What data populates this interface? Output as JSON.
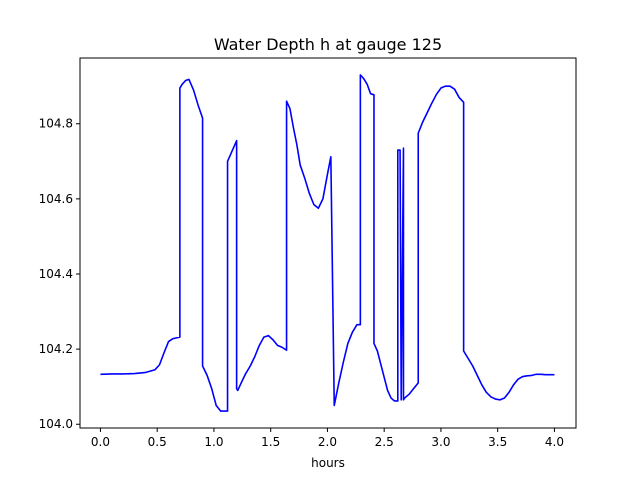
{
  "chart_data": {
    "type": "line",
    "title": "Water Depth h at gauge 125",
    "xlabel": "hours",
    "ylabel": "",
    "xlim": [
      -0.18,
      4.19
    ],
    "ylim": [
      103.99,
      104.975
    ],
    "xticks": [
      0.0,
      0.5,
      1.0,
      1.5,
      2.0,
      2.5,
      3.0,
      3.5,
      4.0
    ],
    "xtick_labels": [
      "0.0",
      "0.5",
      "1.0",
      "1.5",
      "2.0",
      "2.5",
      "3.0",
      "3.5",
      "4.0"
    ],
    "yticks": [
      104.0,
      104.2,
      104.4,
      104.6,
      104.8
    ],
    "ytick_labels": [
      "104.0",
      "104.2",
      "104.4",
      "104.6",
      "104.8"
    ],
    "grid": false,
    "series": [
      {
        "color": "#0000ff",
        "x": [
          0.0,
          0.1,
          0.2,
          0.3,
          0.4,
          0.48,
          0.52,
          0.56,
          0.6,
          0.64,
          0.7,
          0.7,
          0.72,
          0.75,
          0.78,
          0.82,
          0.86,
          0.9,
          0.9,
          0.94,
          0.98,
          1.02,
          1.06,
          1.1,
          1.12,
          1.12,
          1.2,
          1.2,
          1.21,
          1.24,
          1.28,
          1.32,
          1.36,
          1.4,
          1.44,
          1.48,
          1.52,
          1.56,
          1.6,
          1.64,
          1.64,
          1.67,
          1.7,
          1.73,
          1.76,
          1.8,
          1.84,
          1.88,
          1.92,
          1.96,
          2.0,
          2.03,
          2.06,
          2.06,
          2.1,
          2.14,
          2.18,
          2.22,
          2.26,
          2.29,
          2.29,
          2.32,
          2.35,
          2.38,
          2.41,
          2.41,
          2.44,
          2.47,
          2.5,
          2.53,
          2.56,
          2.59,
          2.62,
          2.62,
          2.64,
          2.65,
          2.65,
          2.67,
          2.67,
          2.67,
          2.68,
          2.72,
          2.76,
          2.8,
          2.8,
          2.84,
          2.88,
          2.92,
          2.96,
          3.0,
          3.04,
          3.08,
          3.12,
          3.16,
          3.2,
          3.2,
          3.24,
          3.28,
          3.32,
          3.36,
          3.4,
          3.44,
          3.48,
          3.52,
          3.56,
          3.6,
          3.64,
          3.68,
          3.72,
          3.76,
          3.8,
          3.84,
          3.88,
          3.92,
          3.96,
          4.0
        ],
        "y": [
          104.133,
          104.134,
          104.134,
          104.135,
          104.138,
          104.145,
          104.158,
          104.19,
          104.22,
          104.228,
          104.232,
          104.895,
          104.905,
          104.915,
          104.918,
          104.89,
          104.85,
          104.815,
          104.155,
          104.13,
          104.095,
          104.05,
          104.035,
          104.035,
          104.035,
          104.7,
          104.755,
          104.095,
          104.09,
          104.11,
          104.135,
          104.155,
          104.18,
          104.21,
          104.232,
          104.236,
          104.225,
          104.21,
          104.205,
          104.197,
          104.86,
          104.84,
          104.79,
          104.745,
          104.69,
          104.655,
          104.615,
          104.585,
          104.575,
          104.6,
          104.665,
          104.712,
          104.05,
          104.05,
          104.11,
          104.165,
          104.215,
          104.245,
          104.265,
          104.265,
          104.93,
          104.92,
          104.905,
          104.88,
          104.877,
          104.215,
          104.195,
          104.16,
          104.125,
          104.09,
          104.07,
          104.062,
          104.062,
          104.73,
          104.73,
          104.065,
          104.065,
          104.735,
          104.735,
          104.065,
          104.07,
          104.08,
          104.095,
          104.11,
          104.775,
          104.805,
          104.83,
          104.855,
          104.878,
          104.895,
          104.9,
          104.9,
          104.892,
          104.87,
          104.857,
          104.195,
          104.175,
          104.155,
          104.13,
          104.105,
          104.085,
          104.073,
          104.067,
          104.065,
          104.07,
          104.085,
          104.105,
          104.12,
          104.127,
          104.129,
          104.13,
          104.133,
          104.133,
          104.132,
          104.132,
          104.132
        ]
      }
    ]
  }
}
